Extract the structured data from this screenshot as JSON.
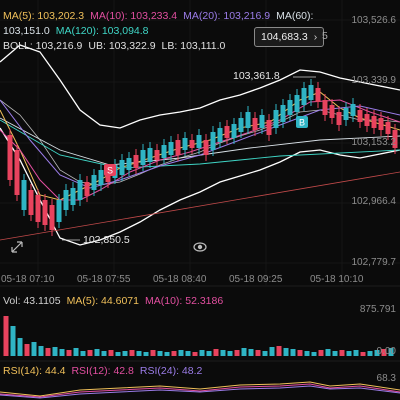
{
  "ma_legend": {
    "ma5": "MA(5): 103,202.3",
    "ma10": "MA(10): 103,233.4",
    "ma20": "MA(20): 103,216.9",
    "ma60": "MA(60):",
    "ma60_val": "103,151.0",
    "ma120": "MA(120): 103,094.8"
  },
  "boll_legend": {
    "boll": "BOLL: 103,216.9",
    "ub": "UB: 103,322.9",
    "lb": "LB: 103,111.0"
  },
  "current_price_tag": {
    "price": "104,683.3",
    "chevron": "›",
    "suffix": "5"
  },
  "price_axis": [
    "103,526.6",
    "103,339.9",
    "103,153.2",
    "102,966.4",
    "102,779.7"
  ],
  "time_axis": [
    "05-18 07:10",
    "05-18 07:55",
    "05-18 08:40",
    "05-18 09:25",
    "05-18 10:10"
  ],
  "annotations": {
    "high": "103,361.8",
    "low": "102,850.5",
    "sell": "S",
    "buy": "B"
  },
  "volume": {
    "vol": "Vol: 43.1105",
    "ma5": "MA(5): 44.6071",
    "ma10": "MA(10): 52.3186",
    "axis_top": "875.791",
    "axis_bottom": "0.00"
  },
  "rsi": {
    "rsi14": "RSI(14): 44.4",
    "rsi12": "RSI(12): 42.8",
    "rsi24": "RSI(24): 48.2",
    "axis_top": "68.3"
  },
  "colors": {
    "up": "#2fb4c4",
    "down": "#e8435e",
    "ma5": "#f0c05a",
    "ma10": "#e24fa0",
    "ma20": "#9b7ce8",
    "ma60": "#d8e0e6",
    "ma120": "#3fd6c6",
    "boll": "#ffffff",
    "rsi12": "#e24fa0",
    "rsi24": "#9b7ce8"
  },
  "icons": {
    "fullscreen": "fullscreen-icon",
    "eye": "eye-icon"
  },
  "chart_data": {
    "type": "candlestick",
    "x": [
      "05-18 07:10",
      "05-18 07:55",
      "05-18 08:40",
      "05-18 09:25",
      "05-18 10:10"
    ],
    "y_range": [
      102779.7,
      103526.6
    ],
    "high": 103361.8,
    "low": 102850.5,
    "volume_range": [
      0,
      875.791
    ]
  }
}
